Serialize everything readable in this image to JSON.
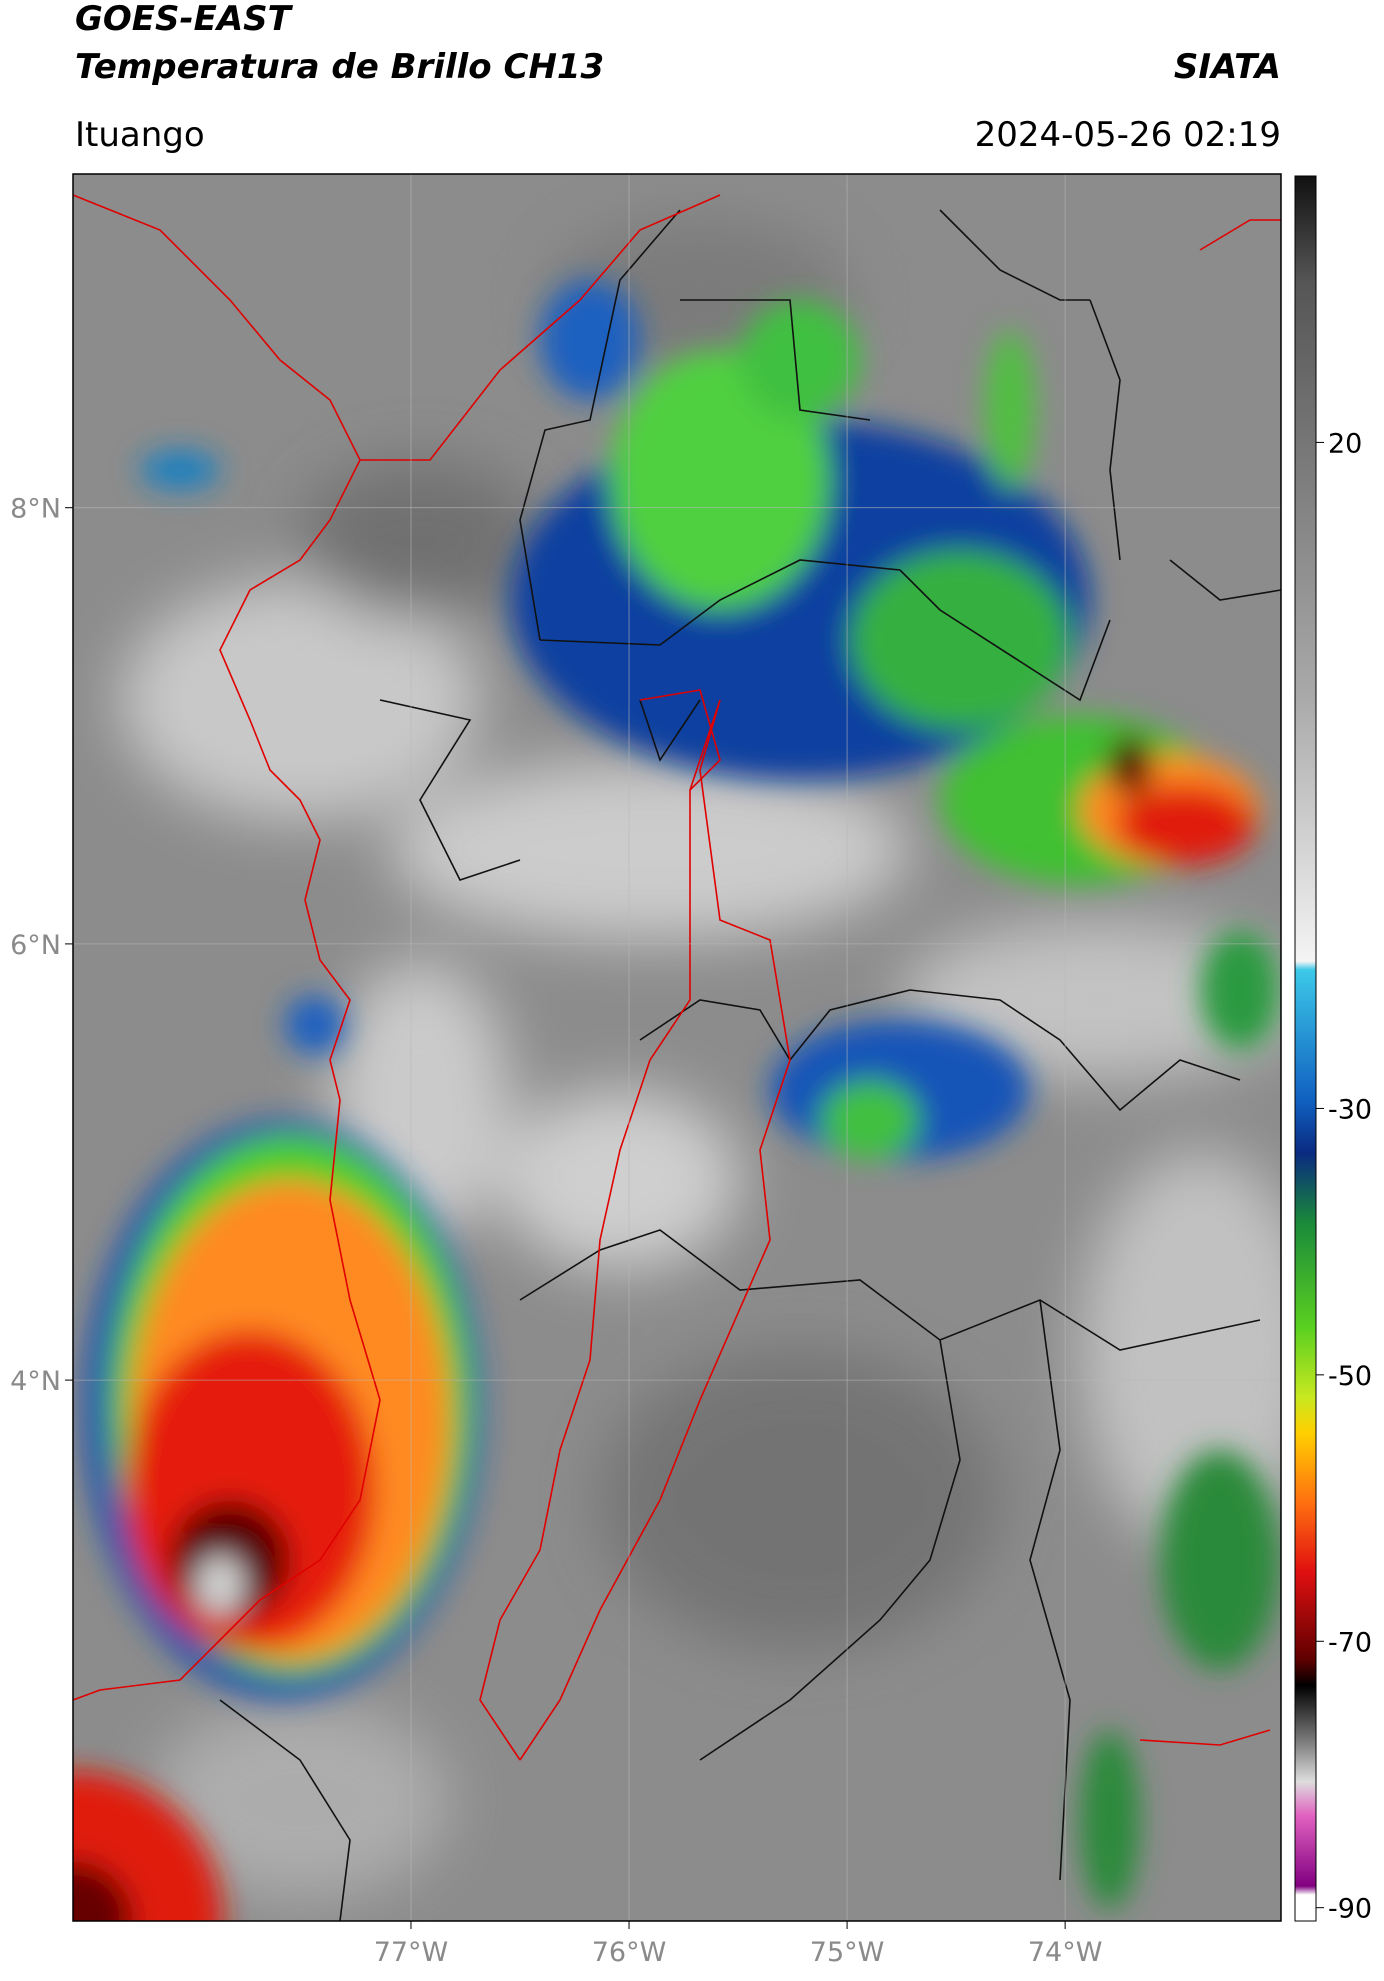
{
  "map": {
    "title": "GOES-EAST",
    "subtitle": "Temperatura de Brillo CH13",
    "source": "SIATA",
    "location": "Ituango",
    "datetime": "2024-05-26 02:19",
    "xlim": [
      -78.55,
      -73.01
    ],
    "ylim": [
      1.52,
      9.53
    ],
    "xticks": [
      {
        "value": -77,
        "label": "77°W"
      },
      {
        "value": -76,
        "label": "76°W"
      },
      {
        "value": -75,
        "label": "75°W"
      },
      {
        "value": -74,
        "label": "74°W"
      }
    ],
    "yticks": [
      {
        "value": 8,
        "label": "8°N"
      },
      {
        "value": 6,
        "label": "6°N"
      },
      {
        "value": 4,
        "label": "4°N"
      }
    ],
    "grid": true,
    "colorbar": {
      "lim": [
        -91,
        40
      ],
      "ticks": [
        20,
        -30,
        -50,
        -70,
        -90
      ]
    }
  }
}
